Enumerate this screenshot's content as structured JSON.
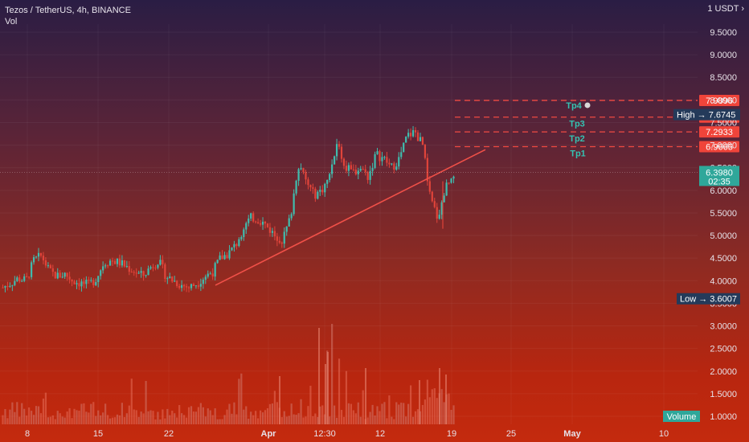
{
  "header": {
    "symbol_line": "Tezos / TetherUS, 4h, BINANCE",
    "volume_label": "Vol"
  },
  "currency_button": "1 USDT",
  "chart_data": {
    "type": "candlestick",
    "title": "Tezos / TetherUS, 4h, BINANCE",
    "ylim": [
      0.9,
      10.0
    ],
    "y_ticks": [
      "9.5000",
      "9.0000",
      "8.5000",
      "8.0000",
      "7.5000",
      "7.0000",
      "6.5000",
      "6.0000",
      "5.5000",
      "5.0000",
      "4.5000",
      "4.0000",
      "3.5000",
      "3.0000",
      "2.5000",
      "2.0000",
      "1.5000",
      "1.0000"
    ],
    "x_ticks": [
      "8",
      "15",
      "22",
      "Apr",
      "12:30",
      "12",
      "19",
      "25",
      "May",
      "10"
    ],
    "current_price": {
      "value": "6.3980",
      "countdown": "02:35"
    },
    "high": {
      "label": "High",
      "value": "7.6745"
    },
    "low": {
      "label": "Low",
      "value": "3.6007"
    },
    "targets": [
      {
        "label": "Tp1",
        "price": "6.9665"
      },
      {
        "label": "Tp2",
        "price": "7.2933"
      },
      {
        "label": "Tp3",
        "price": "7.6201"
      },
      {
        "label": "Tp4",
        "price": "7.9896"
      }
    ],
    "trendline": {
      "from_price": 3.9,
      "to_price": 6.9
    },
    "volume_label": "Volume",
    "price_keypoints": [
      3.85,
      3.95,
      4.05,
      4.0,
      4.45,
      4.55,
      4.2,
      4.1,
      4.15,
      4.0,
      3.95,
      3.9,
      4.05,
      4.4,
      4.45,
      4.4,
      4.3,
      4.2,
      4.1,
      4.3,
      4.45,
      4.1,
      4.0,
      3.9,
      3.85,
      3.95,
      4.1,
      4.2,
      4.5,
      4.6,
      4.8,
      5.2,
      5.4,
      5.35,
      5.2,
      5.0,
      4.9,
      5.4,
      6.6,
      6.2,
      5.9,
      6.0,
      6.3,
      7.1,
      6.5,
      6.4,
      6.5,
      6.3,
      6.8,
      6.7,
      6.5,
      6.7,
      7.2,
      7.3,
      7.0,
      5.8,
      5.4,
      6.1,
      6.4
    ]
  }
}
